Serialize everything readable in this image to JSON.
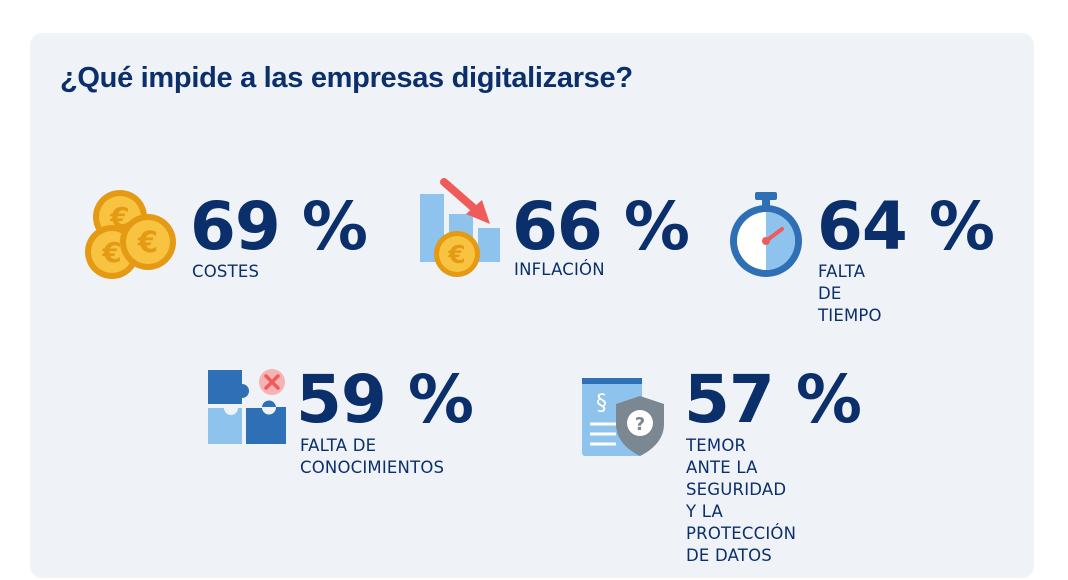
{
  "title": "¿Qué impide a las empresas digitalizarse?",
  "chart_data": {
    "type": "table",
    "title": "¿Qué impide a las empresas digitalizarse?",
    "stats": [
      {
        "value_label": "69 %",
        "value": 69,
        "label": "COSTES",
        "icon": "euro-coins-icon"
      },
      {
        "value_label": "66 %",
        "value": 66,
        "label": "INFLACIÓN",
        "icon": "inflation-chart-icon"
      },
      {
        "value_label": "64 %",
        "value": 64,
        "label": "FALTA DE TIEMPO",
        "icon": "stopwatch-icon"
      },
      {
        "value_label": "59 %",
        "value": 59,
        "label": "FALTA DE\nCONOCIMIENTOS",
        "icon": "puzzle-icon"
      },
      {
        "value_label": "57 %",
        "value": 57,
        "label": "TEMOR ANTE LA\nSEGURIDAD Y LA\nPROTECCIÓN DE DATOS",
        "icon": "data-protection-shield-icon"
      }
    ]
  },
  "colors": {
    "card_background": "#eff3f7",
    "text": "#0b2f6b",
    "coin_gold": "#f5b82e",
    "light_blue": "#8dc3ec",
    "accent_red": "#ef5b5b"
  }
}
